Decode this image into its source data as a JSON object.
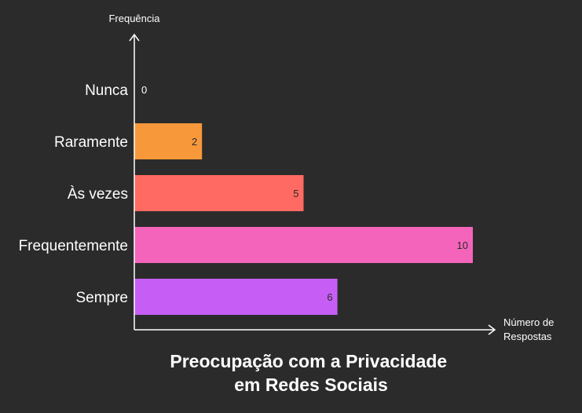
{
  "chart_data": {
    "type": "bar",
    "orientation": "horizontal",
    "title_lines": [
      "Preocupação com a Privacidade",
      "em Redes Sociais"
    ],
    "ylabel": "Frequência",
    "xlabel_lines": [
      "Número de",
      "Respostas"
    ],
    "categories": [
      "Nunca",
      "Raramente",
      "Às vezes",
      "Frequentemente",
      "Sempre"
    ],
    "values": [
      0,
      2,
      5,
      10,
      6
    ],
    "colors": [
      "#f7983a",
      "#f7983a",
      "#ff6b63",
      "#f564bb",
      "#c65ef5"
    ],
    "xlim": [
      0,
      10
    ],
    "grid": false,
    "legend": "none"
  }
}
